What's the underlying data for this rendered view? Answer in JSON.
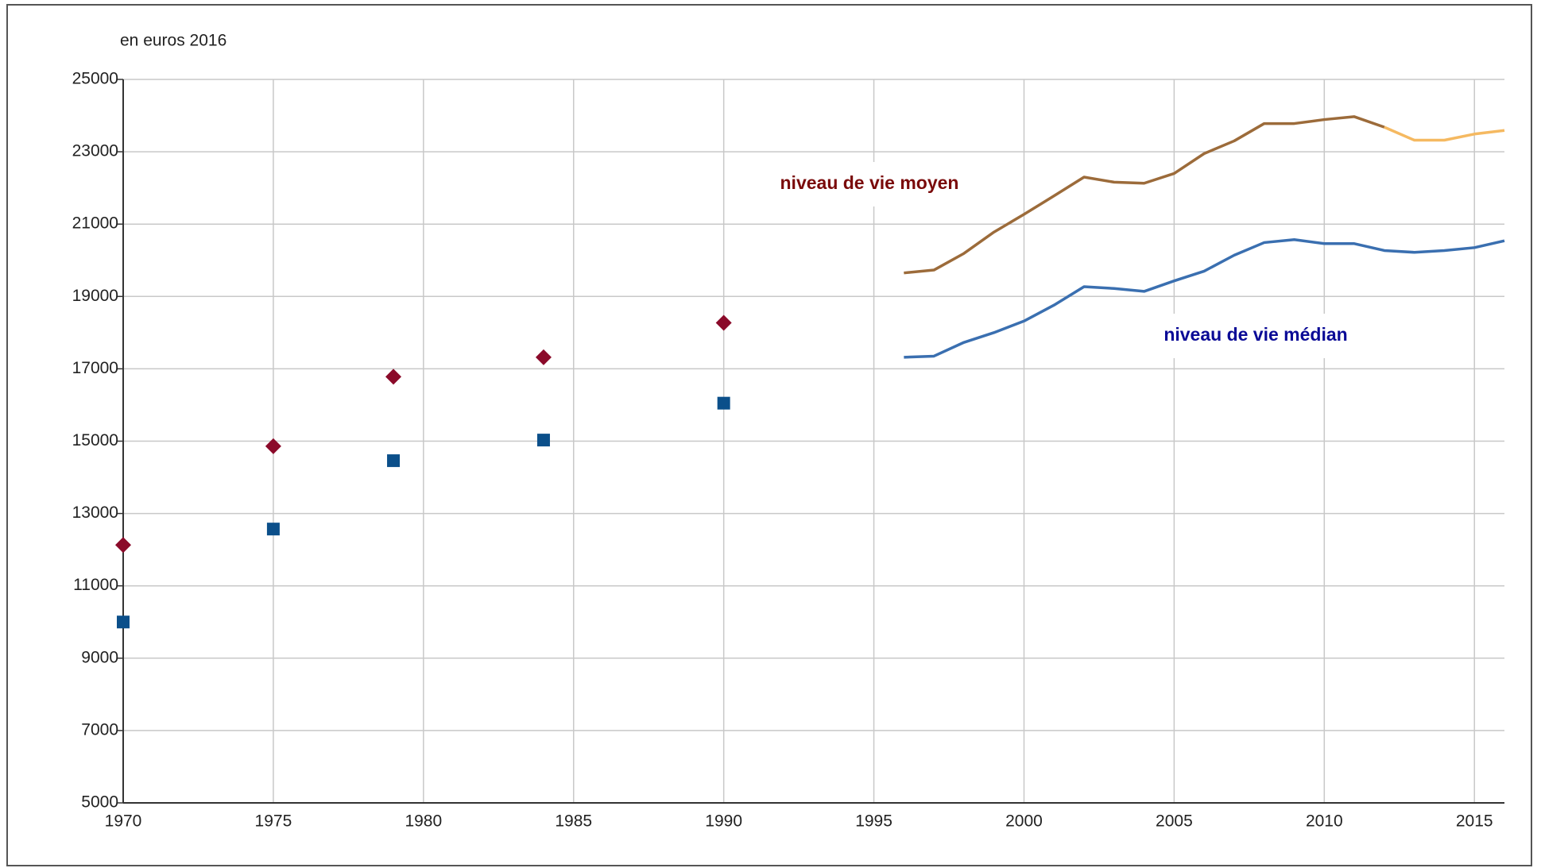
{
  "chart_data": {
    "type": "line",
    "subtitle": "en euros 2016",
    "annotations": [
      {
        "text": "niveau de vie moyen",
        "color": "#7a0a0a"
      },
      {
        "text": "niveau de vie médian",
        "color": "#0a0a96"
      }
    ],
    "xlim": [
      1970,
      2016
    ],
    "xticks": [
      1970,
      1975,
      1980,
      1985,
      1990,
      1995,
      2000,
      2005,
      2010,
      2015
    ],
    "ylim": [
      5000,
      25000
    ],
    "yticks": [
      5000,
      7000,
      9000,
      11000,
      13000,
      15000,
      17000,
      19000,
      21000,
      23000,
      25000
    ],
    "grid": true,
    "series": [
      {
        "type": "scatter",
        "marker": "diamond",
        "color": "#8b0a2a",
        "x": [
          1970,
          1975,
          1979,
          1984,
          1990
        ],
        "values": [
          12130,
          14860,
          16780,
          17320,
          18270
        ]
      },
      {
        "type": "scatter",
        "marker": "square",
        "color": "#0b4f8a",
        "x": [
          1970,
          1975,
          1979,
          1984,
          1990
        ],
        "values": [
          10000,
          12570,
          14460,
          15030,
          16050
        ]
      },
      {
        "type": "line",
        "color": "#9c6b3a",
        "x": [
          1996,
          1997,
          1998,
          1999,
          2000,
          2001,
          2002,
          2003,
          2004,
          2005,
          2006,
          2007,
          2008,
          2009,
          2010,
          2011,
          2012
        ],
        "values": [
          19650,
          19730,
          20190,
          20780,
          21270,
          21780,
          22300,
          22160,
          22130,
          22400,
          22950,
          23300,
          23780,
          23780,
          23890,
          23970,
          23680
        ]
      },
      {
        "type": "line",
        "color": "#f5b961",
        "x": [
          2012,
          2013,
          2014,
          2015,
          2016
        ],
        "values": [
          23680,
          23320,
          23320,
          23490,
          23590
        ]
      },
      {
        "type": "line",
        "color": "#3a6fb0",
        "x": [
          1996,
          1997,
          1998,
          1999,
          2000,
          2001,
          2002,
          2003,
          2004,
          2005,
          2006,
          2007,
          2008,
          2009,
          2010,
          2011,
          2012,
          2013,
          2014,
          2015,
          2016
        ],
        "values": [
          17320,
          17350,
          17730,
          18000,
          18320,
          18760,
          19270,
          19220,
          19140,
          19430,
          19700,
          20140,
          20490,
          20570,
          20460,
          20460,
          20270,
          20220,
          20270,
          20350,
          20540
        ]
      }
    ]
  }
}
